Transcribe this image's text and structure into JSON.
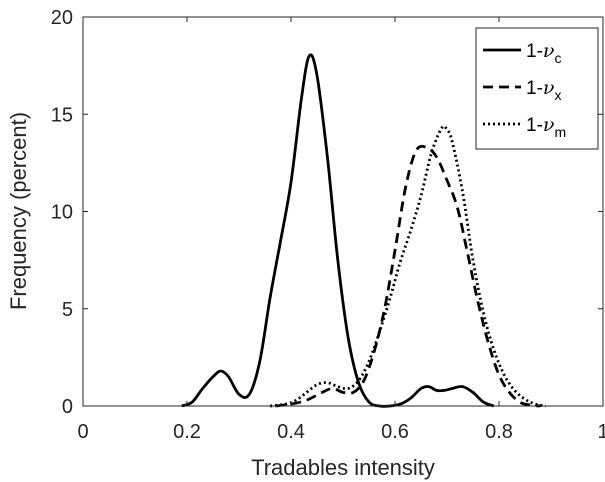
{
  "chart_data": {
    "type": "line",
    "xlabel": "Tradables intensity",
    "ylabel": "Frequency (percent)",
    "xlim": [
      0,
      1
    ],
    "ylim": [
      0,
      20
    ],
    "x_ticks": [
      0,
      0.2,
      0.4,
      0.6,
      0.8,
      1
    ],
    "x_tick_labels": [
      "0",
      "0.2",
      "0.4",
      "0.6",
      "0.8",
      "1"
    ],
    "y_ticks": [
      0,
      5,
      10,
      15,
      20
    ],
    "y_tick_labels": [
      "0",
      "5",
      "10",
      "15",
      "20"
    ],
    "grid": false,
    "legend_position": "top-right",
    "colors": {
      "lines": "#000000",
      "axes": "#262626",
      "background": "#ffffff"
    },
    "series": [
      {
        "legend_prefix": "1-",
        "legend_symbol": "ν",
        "legend_subscript": "c",
        "line_style": "solid",
        "x": [
          0.19,
          0.21,
          0.23,
          0.25,
          0.265,
          0.28,
          0.3,
          0.32,
          0.34,
          0.36,
          0.38,
          0.4,
          0.42,
          0.435,
          0.45,
          0.47,
          0.49,
          0.51,
          0.53,
          0.55,
          0.57,
          0.59,
          0.61,
          0.63,
          0.65,
          0.665,
          0.68,
          0.695,
          0.71,
          0.73,
          0.75,
          0.77,
          0.79
        ],
        "y": [
          0.0,
          0.2,
          0.9,
          1.5,
          1.8,
          1.5,
          0.6,
          0.6,
          2.3,
          5.6,
          8.5,
          11.5,
          15.8,
          18.0,
          17.0,
          12.8,
          7.5,
          3.5,
          1.2,
          0.2,
          0.0,
          0.0,
          0.1,
          0.4,
          0.9,
          1.0,
          0.8,
          0.8,
          0.9,
          1.0,
          0.7,
          0.2,
          0.0
        ]
      },
      {
        "legend_prefix": "1-",
        "legend_symbol": "ν",
        "legend_subscript": "x",
        "line_style": "dashed",
        "x": [
          0.37,
          0.4,
          0.43,
          0.46,
          0.48,
          0.5,
          0.52,
          0.54,
          0.56,
          0.58,
          0.6,
          0.62,
          0.64,
          0.66,
          0.68,
          0.7,
          0.72,
          0.74,
          0.76,
          0.78,
          0.8,
          0.82,
          0.84,
          0.86,
          0.88
        ],
        "y": [
          0.0,
          0.1,
          0.3,
          0.7,
          0.9,
          0.7,
          0.7,
          1.3,
          2.8,
          5.0,
          8.0,
          11.2,
          13.1,
          13.3,
          12.8,
          11.6,
          10.2,
          7.8,
          5.3,
          3.2,
          1.6,
          0.7,
          0.2,
          0.05,
          0.0
        ]
      },
      {
        "legend_prefix": "1-",
        "legend_symbol": "ν",
        "legend_subscript": "m",
        "line_style": "dotted",
        "x": [
          0.36,
          0.39,
          0.41,
          0.43,
          0.45,
          0.47,
          0.49,
          0.51,
          0.53,
          0.55,
          0.57,
          0.59,
          0.61,
          0.63,
          0.65,
          0.67,
          0.69,
          0.7,
          0.71,
          0.73,
          0.75,
          0.77,
          0.79,
          0.81,
          0.83,
          0.85,
          0.87,
          0.89
        ],
        "y": [
          0.0,
          0.1,
          0.3,
          0.7,
          1.1,
          1.2,
          1.0,
          0.9,
          1.3,
          2.3,
          3.8,
          5.5,
          7.4,
          9.0,
          10.8,
          13.0,
          14.3,
          14.2,
          13.6,
          11.0,
          7.5,
          4.8,
          2.9,
          1.6,
          0.8,
          0.35,
          0.1,
          0.0
        ]
      }
    ]
  }
}
